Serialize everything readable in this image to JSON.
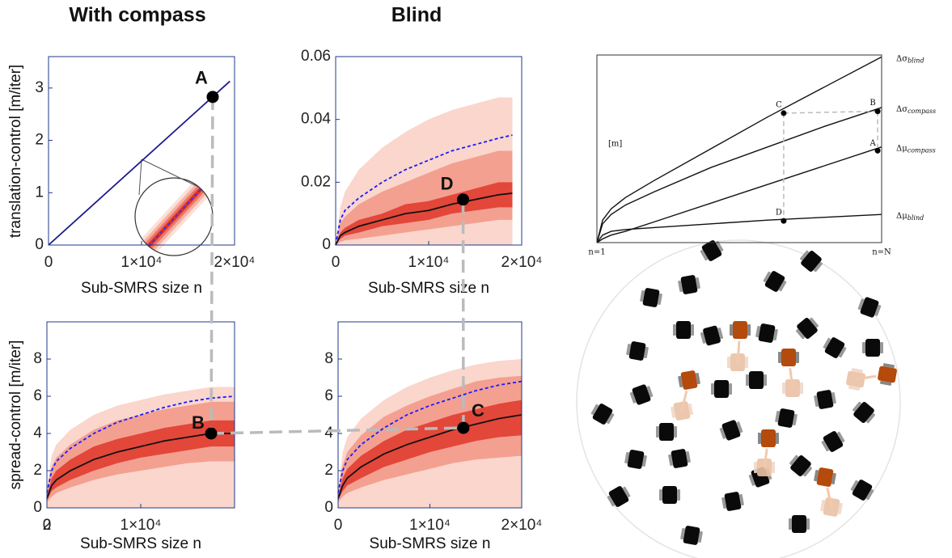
{
  "chart_data": [
    {
      "type": "line",
      "title": "With compass",
      "ylabel": "translation-control [m/iter]",
      "xlabel": "Sub-SMRS size n",
      "xlim": [
        0,
        20000
      ],
      "ylim": [
        0,
        3.6
      ],
      "xticks": [
        0,
        {
          "value": 10000,
          "label": "1×10⁴"
        },
        {
          "value": 20000,
          "label": "2×10⁴"
        }
      ],
      "yticks": [
        0,
        1,
        2,
        3
      ],
      "x": [
        0,
        19500
      ],
      "series": [
        {
          "color": "#1a1a8c",
          "values": [
            0,
            3.13
          ]
        }
      ],
      "points": [
        {
          "label": "A",
          "x": 17650,
          "y": 2.83
        }
      ]
    },
    {
      "type": "fan",
      "title": "Blind",
      "xlabel": "Sub-SMRS size n",
      "xlim": [
        0,
        20000
      ],
      "ylim": [
        0,
        0.06
      ],
      "xticks": [
        0,
        {
          "value": 10000,
          "label": "1×10⁴"
        },
        {
          "value": 20000,
          "label": "2×10⁴"
        }
      ],
      "yticks": [
        0,
        0.02,
        0.04,
        0.06
      ],
      "x": [
        0,
        500,
        1000,
        2500,
        5000,
        7500,
        10000,
        12500,
        15000,
        17500,
        19000
      ],
      "bands": [
        {
          "color": "#fad6cc",
          "lower": [
            0,
            0,
            0,
            0,
            0,
            0,
            0,
            0,
            0,
            0,
            0
          ],
          "upper": [
            0,
            0.012,
            0.017,
            0.024,
            0.031,
            0.036,
            0.04,
            0.043,
            0.045,
            0.047,
            0.047
          ]
        },
        {
          "color": "#f3a091",
          "lower": [
            0,
            0.001,
            0.0015,
            0.002,
            0.003,
            0.004,
            0.005,
            0.006,
            0.007,
            0.008,
            0.008
          ],
          "upper": [
            0,
            0.007,
            0.009,
            0.013,
            0.017,
            0.02,
            0.023,
            0.026,
            0.028,
            0.03,
            0.03
          ]
        },
        {
          "color": "#e2473a",
          "lower": [
            0,
            0.002,
            0.003,
            0.004,
            0.006,
            0.007,
            0.008,
            0.01,
            0.011,
            0.012,
            0.012
          ],
          "upper": [
            0,
            0.004,
            0.0055,
            0.008,
            0.01,
            0.013,
            0.014,
            0.016,
            0.018,
            0.02,
            0.02
          ]
        }
      ],
      "series": [
        {
          "color": "#1a1aff",
          "dash": true,
          "values": [
            0,
            0.008,
            0.011,
            0.015,
            0.02,
            0.024,
            0.027,
            0.03,
            0.032,
            0.034,
            0.035
          ]
        },
        {
          "color": "#111111",
          "values": [
            0,
            0.003,
            0.004,
            0.006,
            0.008,
            0.01,
            0.011,
            0.013,
            0.0145,
            0.016,
            0.0165
          ]
        }
      ],
      "points": [
        {
          "label": "D",
          "x": 13700,
          "y": 0.0145
        }
      ]
    },
    {
      "type": "fan",
      "ylabel": "spread-control [m/iter]",
      "xlabel": "Sub-SMRS size n",
      "xlim": [
        0,
        20000
      ],
      "ylim": [
        0,
        10
      ],
      "xticks": [
        0,
        {
          "value": 10000,
          "label": "1×10⁴"
        },
        2
      ],
      "yticks": [
        0,
        2,
        4,
        6,
        8
      ],
      "x": [
        0,
        500,
        1000,
        2500,
        5000,
        7500,
        10000,
        12500,
        15000,
        17500,
        20000
      ],
      "bands": [
        {
          "color": "#fad6cc",
          "lower": [
            0,
            0,
            0,
            0,
            0,
            0,
            0,
            0,
            0,
            0,
            0
          ],
          "upper": [
            1,
            2.8,
            3.4,
            4.2,
            5,
            5.5,
            5.8,
            6.1,
            6.3,
            6.5,
            6.5
          ]
        },
        {
          "color": "#f3a091",
          "lower": [
            0.3,
            0.6,
            0.8,
            1.1,
            1.5,
            1.8,
            2,
            2.2,
            2.4,
            2.5,
            2.5
          ],
          "upper": [
            0.8,
            2.2,
            2.7,
            3.4,
            4.2,
            4.7,
            5,
            5.3,
            5.5,
            5.7,
            5.7
          ]
        },
        {
          "color": "#e2473a",
          "lower": [
            0.4,
            0.9,
            1.1,
            1.5,
            2,
            2.4,
            2.7,
            2.9,
            3.1,
            3.3,
            3.3
          ],
          "upper": [
            0.6,
            1.6,
            2,
            2.6,
            3.3,
            3.7,
            4,
            4.3,
            4.5,
            4.7,
            4.7
          ]
        }
      ],
      "series": [
        {
          "color": "#1a1aff",
          "dash": true,
          "values": [
            0.8,
            2,
            2.5,
            3.2,
            4,
            4.6,
            5,
            5.4,
            5.7,
            5.9,
            6
          ]
        },
        {
          "color": "#111111",
          "values": [
            0.5,
            1.2,
            1.5,
            2,
            2.6,
            3,
            3.3,
            3.6,
            3.8,
            4,
            4
          ]
        }
      ],
      "points": [
        {
          "label": "B",
          "x": 17500,
          "y": 4
        }
      ]
    },
    {
      "type": "fan",
      "xlabel": "Sub-SMRS size n",
      "xlim": [
        0,
        20000
      ],
      "ylim": [
        0,
        10
      ],
      "xticks": [
        0,
        {
          "value": 10000,
          "label": "1×10⁴"
        },
        {
          "value": 20000,
          "label": "2×10⁴"
        }
      ],
      "yticks": [
        0,
        2,
        4,
        6,
        8
      ],
      "x": [
        0,
        500,
        1000,
        2500,
        5000,
        7500,
        10000,
        12500,
        15000,
        17500,
        20000
      ],
      "bands": [
        {
          "color": "#fad6cc",
          "lower": [
            0,
            0,
            0,
            0,
            0,
            0,
            0,
            0,
            0,
            0,
            0
          ],
          "upper": [
            1,
            3,
            3.8,
            4.8,
            5.8,
            6.5,
            7,
            7.4,
            7.7,
            7.9,
            8
          ]
        },
        {
          "color": "#f3a091",
          "lower": [
            0.3,
            0.6,
            0.8,
            1.1,
            1.5,
            1.8,
            2.1,
            2.4,
            2.6,
            2.7,
            2.8
          ],
          "upper": [
            0.8,
            2.3,
            3,
            3.9,
            4.9,
            5.5,
            6,
            6.4,
            6.8,
            7,
            7.1
          ]
        },
        {
          "color": "#e2473a",
          "lower": [
            0.4,
            0.9,
            1.2,
            1.6,
            2.2,
            2.6,
            3,
            3.3,
            3.6,
            3.8,
            3.9
          ],
          "upper": [
            0.6,
            1.6,
            2.1,
            2.8,
            3.6,
            4.2,
            4.6,
            5,
            5.3,
            5.6,
            5.8
          ]
        }
      ],
      "series": [
        {
          "color": "#1a1aff",
          "dash": true,
          "values": [
            0.8,
            2,
            2.6,
            3.4,
            4.3,
            5,
            5.5,
            5.9,
            6.3,
            6.6,
            6.8
          ]
        },
        {
          "color": "#111111",
          "values": [
            0.5,
            1.2,
            1.6,
            2.2,
            2.9,
            3.4,
            3.8,
            4.2,
            4.5,
            4.8,
            5
          ]
        }
      ],
      "points": [
        {
          "label": "C",
          "x": 13650,
          "y": 4.3
        }
      ]
    },
    {
      "type": "schematic",
      "ylabel": "[m]",
      "xlim": [
        0,
        1
      ],
      "ylim": [
        0,
        1
      ],
      "xticks": [
        {
          "value": 0,
          "label": "n=1"
        },
        {
          "value": 1,
          "label": "n=N"
        }
      ],
      "x": [
        0,
        0.02,
        0.05,
        0.1,
        0.2,
        0.4,
        0.6,
        0.8,
        1
      ],
      "series": [
        {
          "name": "Δσ",
          "subscript": "blind",
          "color": "#111111",
          "values": [
            0,
            0.12,
            0.18,
            0.24,
            0.33,
            0.5,
            0.67,
            0.83,
            0.99
          ]
        },
        {
          "name": "Δσ",
          "subscript": "compass",
          "color": "#111111",
          "values": [
            0,
            0.1,
            0.15,
            0.2,
            0.27,
            0.4,
            0.51,
            0.62,
            0.72
          ]
        },
        {
          "name": "Δμ",
          "subscript": "compass",
          "color": "#111111",
          "values": [
            0,
            0.02,
            0.04,
            0.06,
            0.11,
            0.21,
            0.31,
            0.41,
            0.51
          ]
        },
        {
          "name": "Δμ",
          "subscript": "blind",
          "color": "#111111",
          "values": [
            0,
            0.04,
            0.06,
            0.07,
            0.08,
            0.1,
            0.12,
            0.135,
            0.15
          ]
        }
      ],
      "points": [
        {
          "label": "C",
          "x": 0.656,
          "y": 0.69
        },
        {
          "label": "B",
          "x": 0.986,
          "y": 0.7
        },
        {
          "label": "A",
          "x": 0.986,
          "y": 0.49
        },
        {
          "label": "D",
          "x": 0.656,
          "y": 0.116
        }
      ]
    }
  ]
}
